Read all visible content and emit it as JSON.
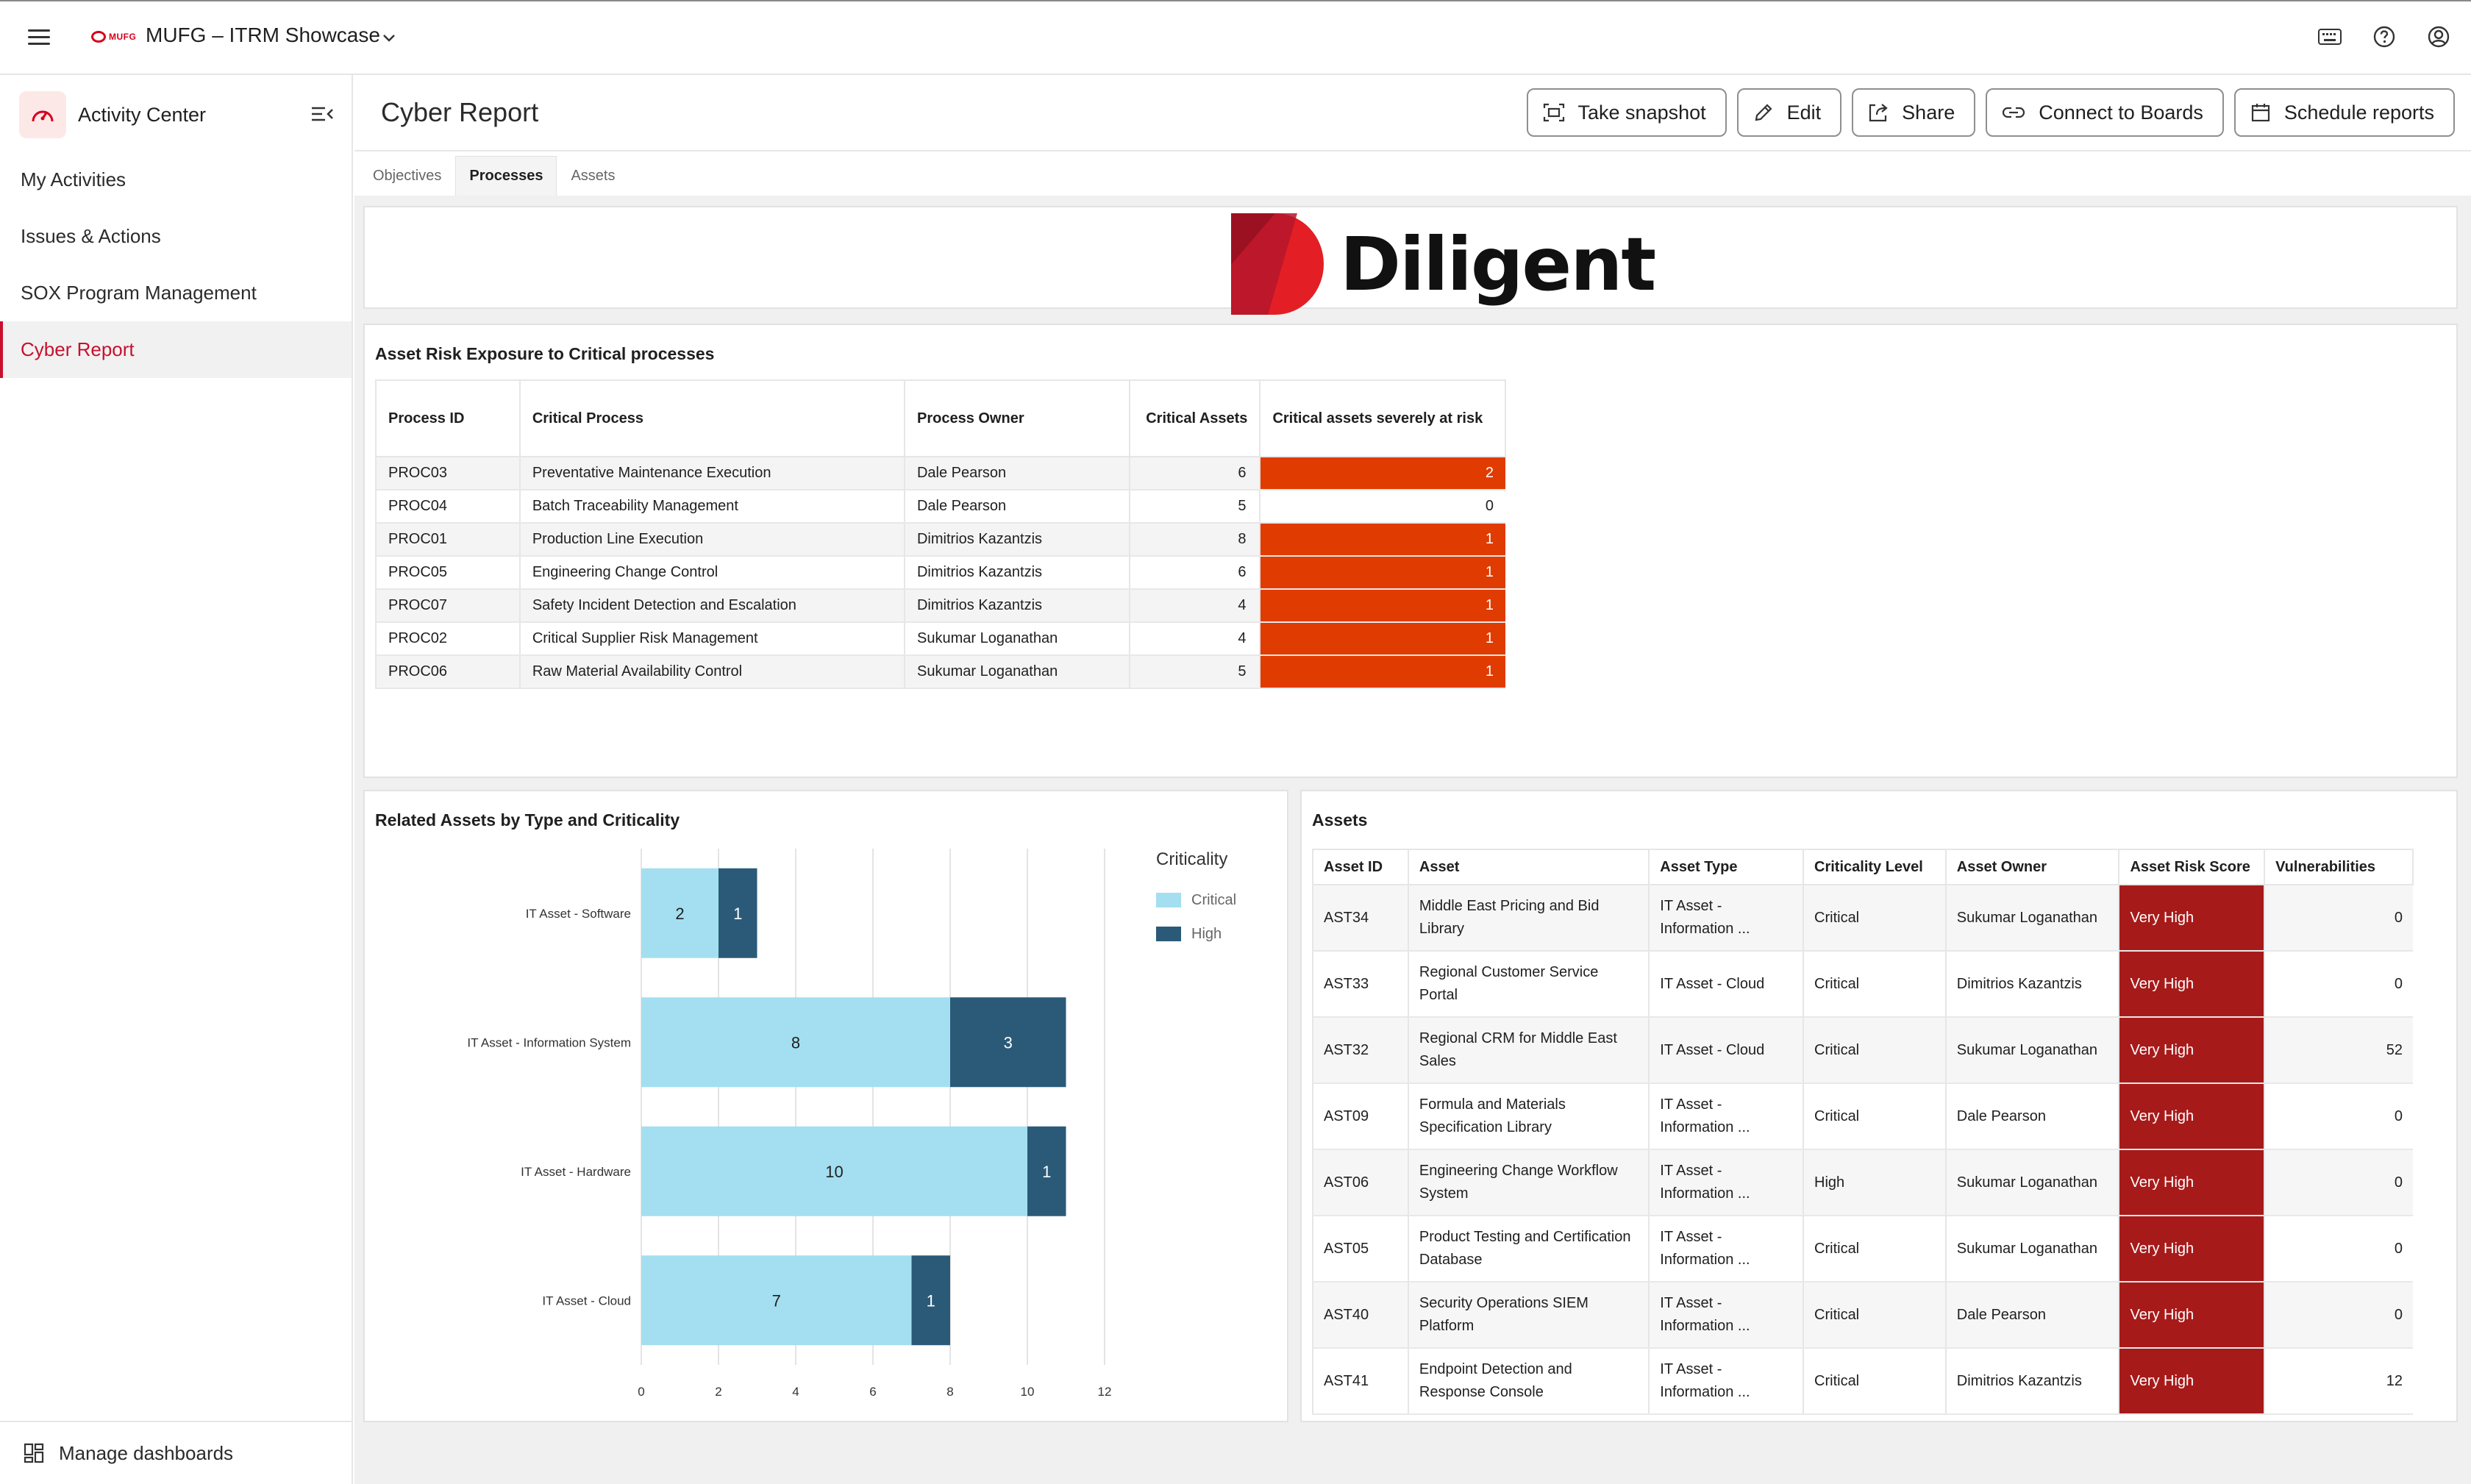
{
  "topbar": {
    "brand_mark": "MUFG",
    "app_title": "MUFG – ITRM Showcase",
    "icons": [
      "keyboard-icon",
      "help-icon",
      "account-icon"
    ]
  },
  "sidebar": {
    "header": "Activity Center",
    "items": [
      {
        "label": "My Activities",
        "active": false
      },
      {
        "label": "Issues & Actions",
        "active": false
      },
      {
        "label": "SOX Program Management",
        "active": false
      },
      {
        "label": "Cyber Report",
        "active": true
      }
    ],
    "manage_label": "Manage dashboards",
    "accent": "#c8102e"
  },
  "header": {
    "title": "Cyber Report",
    "buttons": {
      "snapshot": "Take snapshot",
      "edit": "Edit",
      "share": "Share",
      "connect": "Connect to Boards",
      "schedule": "Schedule reports"
    }
  },
  "tabs": [
    {
      "label": "Objectives",
      "active": false
    },
    {
      "label": "Processes",
      "active": true
    },
    {
      "label": "Assets",
      "active": false
    }
  ],
  "logo": {
    "text": "Diligent"
  },
  "process_panel": {
    "title": "Asset Risk Exposure to Critical processes",
    "columns": [
      "Process ID",
      "Critical Process",
      "Process Owner",
      "Critical Assets",
      "Critical assets severely at risk"
    ],
    "rows": [
      [
        "PROC03",
        "Preventative Maintenance Execution",
        "Dale Pearson",
        "6",
        "2"
      ],
      [
        "PROC04",
        "Batch Traceability Management",
        "Dale Pearson",
        "5",
        "0"
      ],
      [
        "PROC01",
        "Production Line Execution",
        "Dimitrios Kazantzis",
        "8",
        "1"
      ],
      [
        "PROC05",
        "Engineering Change Control",
        "Dimitrios Kazantzis",
        "6",
        "1"
      ],
      [
        "PROC07",
        "Safety Incident Detection and Escalation",
        "Dimitrios Kazantzis",
        "4",
        "1"
      ],
      [
        "PROC02",
        "Critical Supplier Risk Management",
        "Sukumar Loganathan",
        "4",
        "1"
      ],
      [
        "PROC06",
        "Raw Material Availability Control",
        "Sukumar Loganathan",
        "5",
        "1"
      ]
    ],
    "risk_color": "#e03b00"
  },
  "chart_panel": {
    "title": "Related Assets by Type and Criticality",
    "chart_data": {
      "type": "bar",
      "orientation": "horizontal",
      "stacked": true,
      "categories": [
        "IT Asset - Software",
        "IT Asset - Information System",
        "IT Asset - Hardware",
        "IT Asset - Cloud"
      ],
      "series": [
        {
          "name": "Critical",
          "values": [
            2,
            8,
            10,
            7
          ],
          "color": "#a3dff0"
        },
        {
          "name": "High",
          "values": [
            1,
            3,
            1,
            1
          ],
          "color": "#2a5a78"
        }
      ],
      "xlim": [
        0,
        12
      ],
      "xticks": [
        0,
        2,
        4,
        6,
        8,
        10,
        12
      ],
      "legend_title": "Criticality",
      "legend_position": "top-right",
      "grid": true
    }
  },
  "assets_panel": {
    "title": "Assets",
    "columns": [
      "Asset ID",
      "Asset",
      "Asset Type",
      "Criticality Level",
      "Asset Owner",
      "Asset Risk Score",
      "Vulnerabilities"
    ],
    "rows": [
      [
        "AST34",
        "Middle East Pricing and Bid Library",
        "IT Asset - Information ...",
        "Critical",
        "Sukumar Loganathan",
        "Very High",
        "0"
      ],
      [
        "AST33",
        "Regional Customer Service Portal",
        "IT Asset - Cloud",
        "Critical",
        "Dimitrios Kazantzis",
        "Very High",
        "0"
      ],
      [
        "AST32",
        "Regional CRM for Middle East Sales",
        "IT Asset - Cloud",
        "Critical",
        "Sukumar Loganathan",
        "Very High",
        "52"
      ],
      [
        "AST09",
        "Formula and Materials Specification Library",
        "IT Asset - Information ...",
        "Critical",
        "Dale Pearson",
        "Very High",
        "0"
      ],
      [
        "AST06",
        "Engineering Change Workflow System",
        "IT Asset - Information ...",
        "High",
        "Sukumar Loganathan",
        "Very High",
        "0"
      ],
      [
        "AST05",
        "Product Testing and Certification Database",
        "IT Asset - Information ...",
        "Critical",
        "Sukumar Loganathan",
        "Very High",
        "0"
      ],
      [
        "AST40",
        "Security Operations SIEM Platform",
        "IT Asset - Information ...",
        "Critical",
        "Dale Pearson",
        "Very High",
        "0"
      ],
      [
        "AST41",
        "Endpoint Detection and Response Console",
        "IT Asset - Information ...",
        "Critical",
        "Dimitrios Kazantzis",
        "Very High",
        "12"
      ]
    ],
    "score_color": "#a71a1a"
  }
}
